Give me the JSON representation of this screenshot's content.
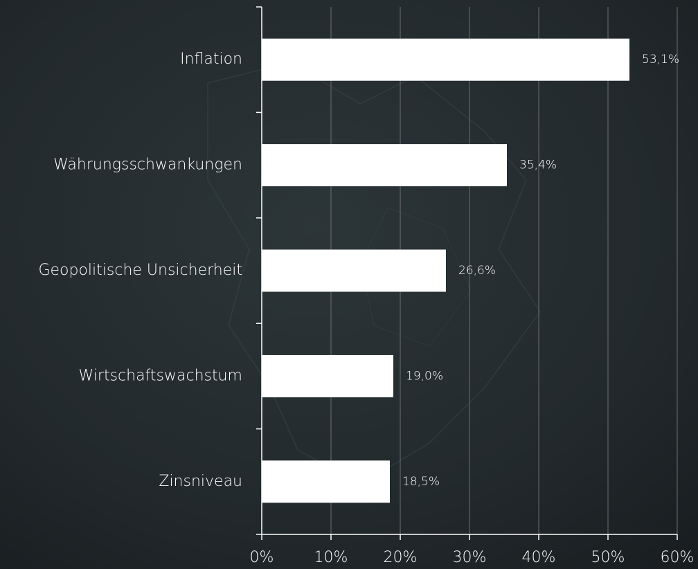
{
  "chart_data": {
    "type": "hbar",
    "categories": [
      "Inflation",
      "Währungsschwankungen",
      "Geopolitische Unsicherheit",
      "Wirtschaftswachstum",
      "Zinsniveau"
    ],
    "values": [
      53.1,
      35.4,
      26.6,
      19.0,
      18.5
    ],
    "value_labels": [
      "53,1%",
      "35,4%",
      "26,6%",
      "19,0%",
      "18,5%"
    ],
    "color": "#ffffff",
    "xlim": [
      0,
      60
    ],
    "xticks": [
      {
        "value": 0,
        "label": "0%"
      },
      {
        "value": 10,
        "label": "10%"
      },
      {
        "value": 20,
        "label": "20%"
      },
      {
        "value": 30,
        "label": "30%"
      },
      {
        "value": 40,
        "label": "40%"
      },
      {
        "value": 50,
        "label": "50%"
      },
      {
        "value": 60,
        "label": "60%"
      }
    ],
    "grid": true
  }
}
